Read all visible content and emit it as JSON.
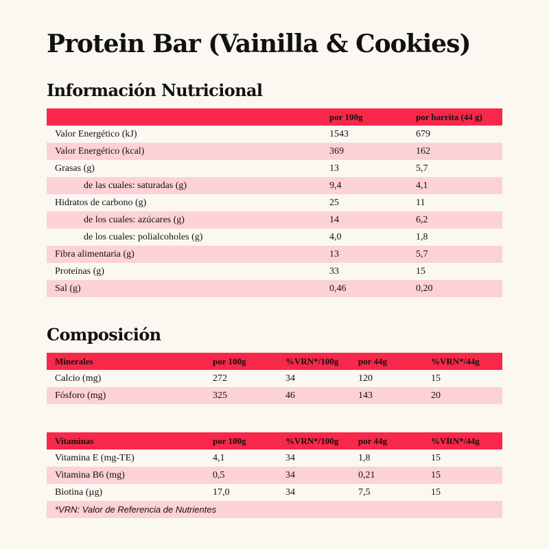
{
  "title": "Protein Bar (Vainilla & Cookies)",
  "nutrition": {
    "heading": "Información Nutricional",
    "columns": [
      "",
      "por 100g",
      "por barrita (44 g)"
    ],
    "rows": [
      {
        "label": "Valor Energético (kJ)",
        "per100": "1543",
        "perBar": "679",
        "indent": false
      },
      {
        "label": "Valor Energético (kcal)",
        "per100": "369",
        "perBar": "162",
        "indent": false
      },
      {
        "label": "Grasas (g)",
        "per100": "13",
        "perBar": "5,7",
        "indent": false
      },
      {
        "label": "de las cuales: saturadas (g)",
        "per100": "9,4",
        "perBar": "4,1",
        "indent": true
      },
      {
        "label": "Hidratos de carbono (g)",
        "per100": "25",
        "perBar": "11",
        "indent": false
      },
      {
        "label": "de los cuales: azúcares (g)",
        "per100": "14",
        "perBar": "6,2",
        "indent": true
      },
      {
        "label": "de los cuales: polialcoholes (g)",
        "per100": "4,0",
        "perBar": "1,8",
        "indent": true
      },
      {
        "label": "Fibra alimentaria (g)",
        "per100": "13",
        "perBar": "5,7",
        "indent": false
      },
      {
        "label": "Proteínas (g)",
        "per100": "33",
        "perBar": "15",
        "indent": false
      },
      {
        "label": "Sal (g)",
        "per100": "0,46",
        "perBar": "0,20",
        "indent": false
      }
    ]
  },
  "composition": {
    "heading": "Composición",
    "minerals": {
      "columns": [
        "Minerales",
        "por 100g",
        "%VRN*/100g",
        "por 44g",
        "%VRN*/44g"
      ],
      "rows": [
        [
          "Calcio (mg)",
          "272",
          "34",
          "120",
          "15"
        ],
        [
          "Fósforo (mg)",
          "325",
          "46",
          "143",
          "20"
        ]
      ]
    },
    "vitamins": {
      "columns": [
        "Vitaminas",
        "por 100g",
        "%VRN*/100g",
        "por 44g",
        "%VRN*/44g"
      ],
      "rows": [
        [
          "Vitamina E (mg-TE)",
          "4,1",
          "34",
          "1,8",
          "15"
        ],
        [
          "Vitamina B6 (mg)",
          "0,5",
          "34",
          "0,21",
          "15"
        ],
        [
          "Biotina (µg)",
          "17,0",
          "34",
          "7,5",
          "15"
        ]
      ]
    },
    "footnote": "*VRN: Valor de Referencia de Nutrientes"
  },
  "colors": {
    "header": "#f7284a",
    "stripe": "#fcd2d6",
    "background": "#fbf8f1"
  }
}
